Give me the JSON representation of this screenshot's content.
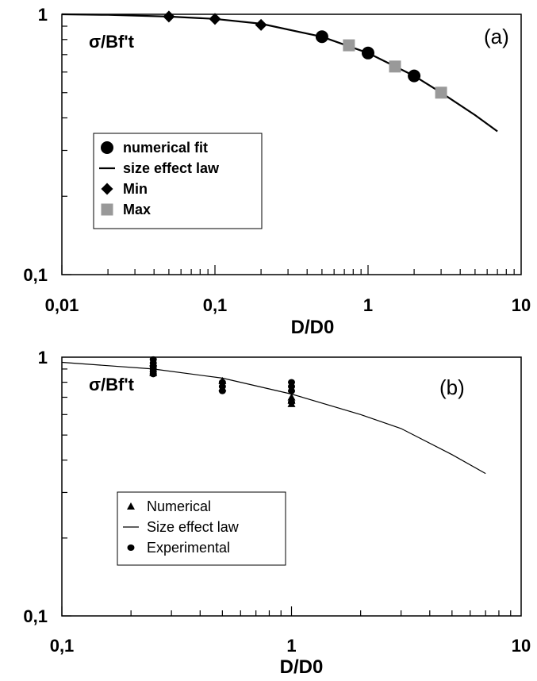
{
  "chart_data": [
    {
      "type": "line",
      "panel_label": "(a)",
      "ylabel": "σ/Bf't",
      "xlabel": "D/D0",
      "xscale": "log",
      "yscale": "log",
      "xlim": [
        0.01,
        10
      ],
      "ylim": [
        0.1,
        1
      ],
      "x_ticks": [
        "0,01",
        "0,1",
        "1",
        "10"
      ],
      "y_ticks": [
        "0,1",
        "1"
      ],
      "legend_position": "left-middle",
      "series": [
        {
          "name": "size effect law",
          "style": "line",
          "x": [
            0.01,
            0.02,
            0.05,
            0.1,
            0.2,
            0.5,
            1,
            2,
            3,
            5,
            7
          ],
          "y": [
            1.0,
            0.995,
            0.98,
            0.96,
            0.92,
            0.82,
            0.71,
            0.58,
            0.5,
            0.41,
            0.355
          ]
        },
        {
          "name": "numerical fit",
          "style": "circle",
          "x": [
            0.5,
            1,
            2
          ],
          "y": [
            0.82,
            0.71,
            0.58
          ]
        },
        {
          "name": "Min",
          "style": "diamond",
          "x": [
            0.05,
            0.1,
            0.2
          ],
          "y": [
            0.98,
            0.96,
            0.91
          ]
        },
        {
          "name": "Max",
          "style": "square",
          "color": "#999999",
          "x": [
            0.75,
            1.5,
            3
          ],
          "y": [
            0.76,
            0.63,
            0.5
          ]
        }
      ]
    },
    {
      "type": "line",
      "panel_label": "(b)",
      "ylabel": "σ/Bf't",
      "xlabel": "D/D0",
      "xscale": "log",
      "yscale": "log",
      "xlim": [
        0.1,
        10
      ],
      "ylim": [
        0.1,
        1
      ],
      "x_ticks": [
        "0,1",
        "1",
        "10"
      ],
      "y_ticks": [
        "0,1",
        "1"
      ],
      "legend_position": "left-middle",
      "series": [
        {
          "name": "Size effect law",
          "style": "line",
          "x": [
            0.1,
            0.25,
            0.5,
            1,
            2,
            3,
            5,
            7
          ],
          "y": [
            0.955,
            0.9,
            0.83,
            0.72,
            0.6,
            0.53,
            0.42,
            0.355
          ]
        },
        {
          "name": "Numerical",
          "style": "triangle",
          "x": [
            0.25,
            0.25,
            0.5,
            0.5,
            1,
            1,
            1
          ],
          "y": [
            0.95,
            0.87,
            0.81,
            0.76,
            0.7,
            0.68,
            0.66
          ]
        },
        {
          "name": "Experimental",
          "style": "dot",
          "x": [
            0.25,
            0.25,
            0.25,
            0.25,
            0.25,
            0.25,
            0.5,
            0.5,
            0.5,
            1,
            1,
            1,
            1
          ],
          "y": [
            0.98,
            0.95,
            0.92,
            0.9,
            0.88,
            0.86,
            0.8,
            0.77,
            0.74,
            0.8,
            0.77,
            0.74,
            0.67
          ]
        }
      ]
    }
  ]
}
